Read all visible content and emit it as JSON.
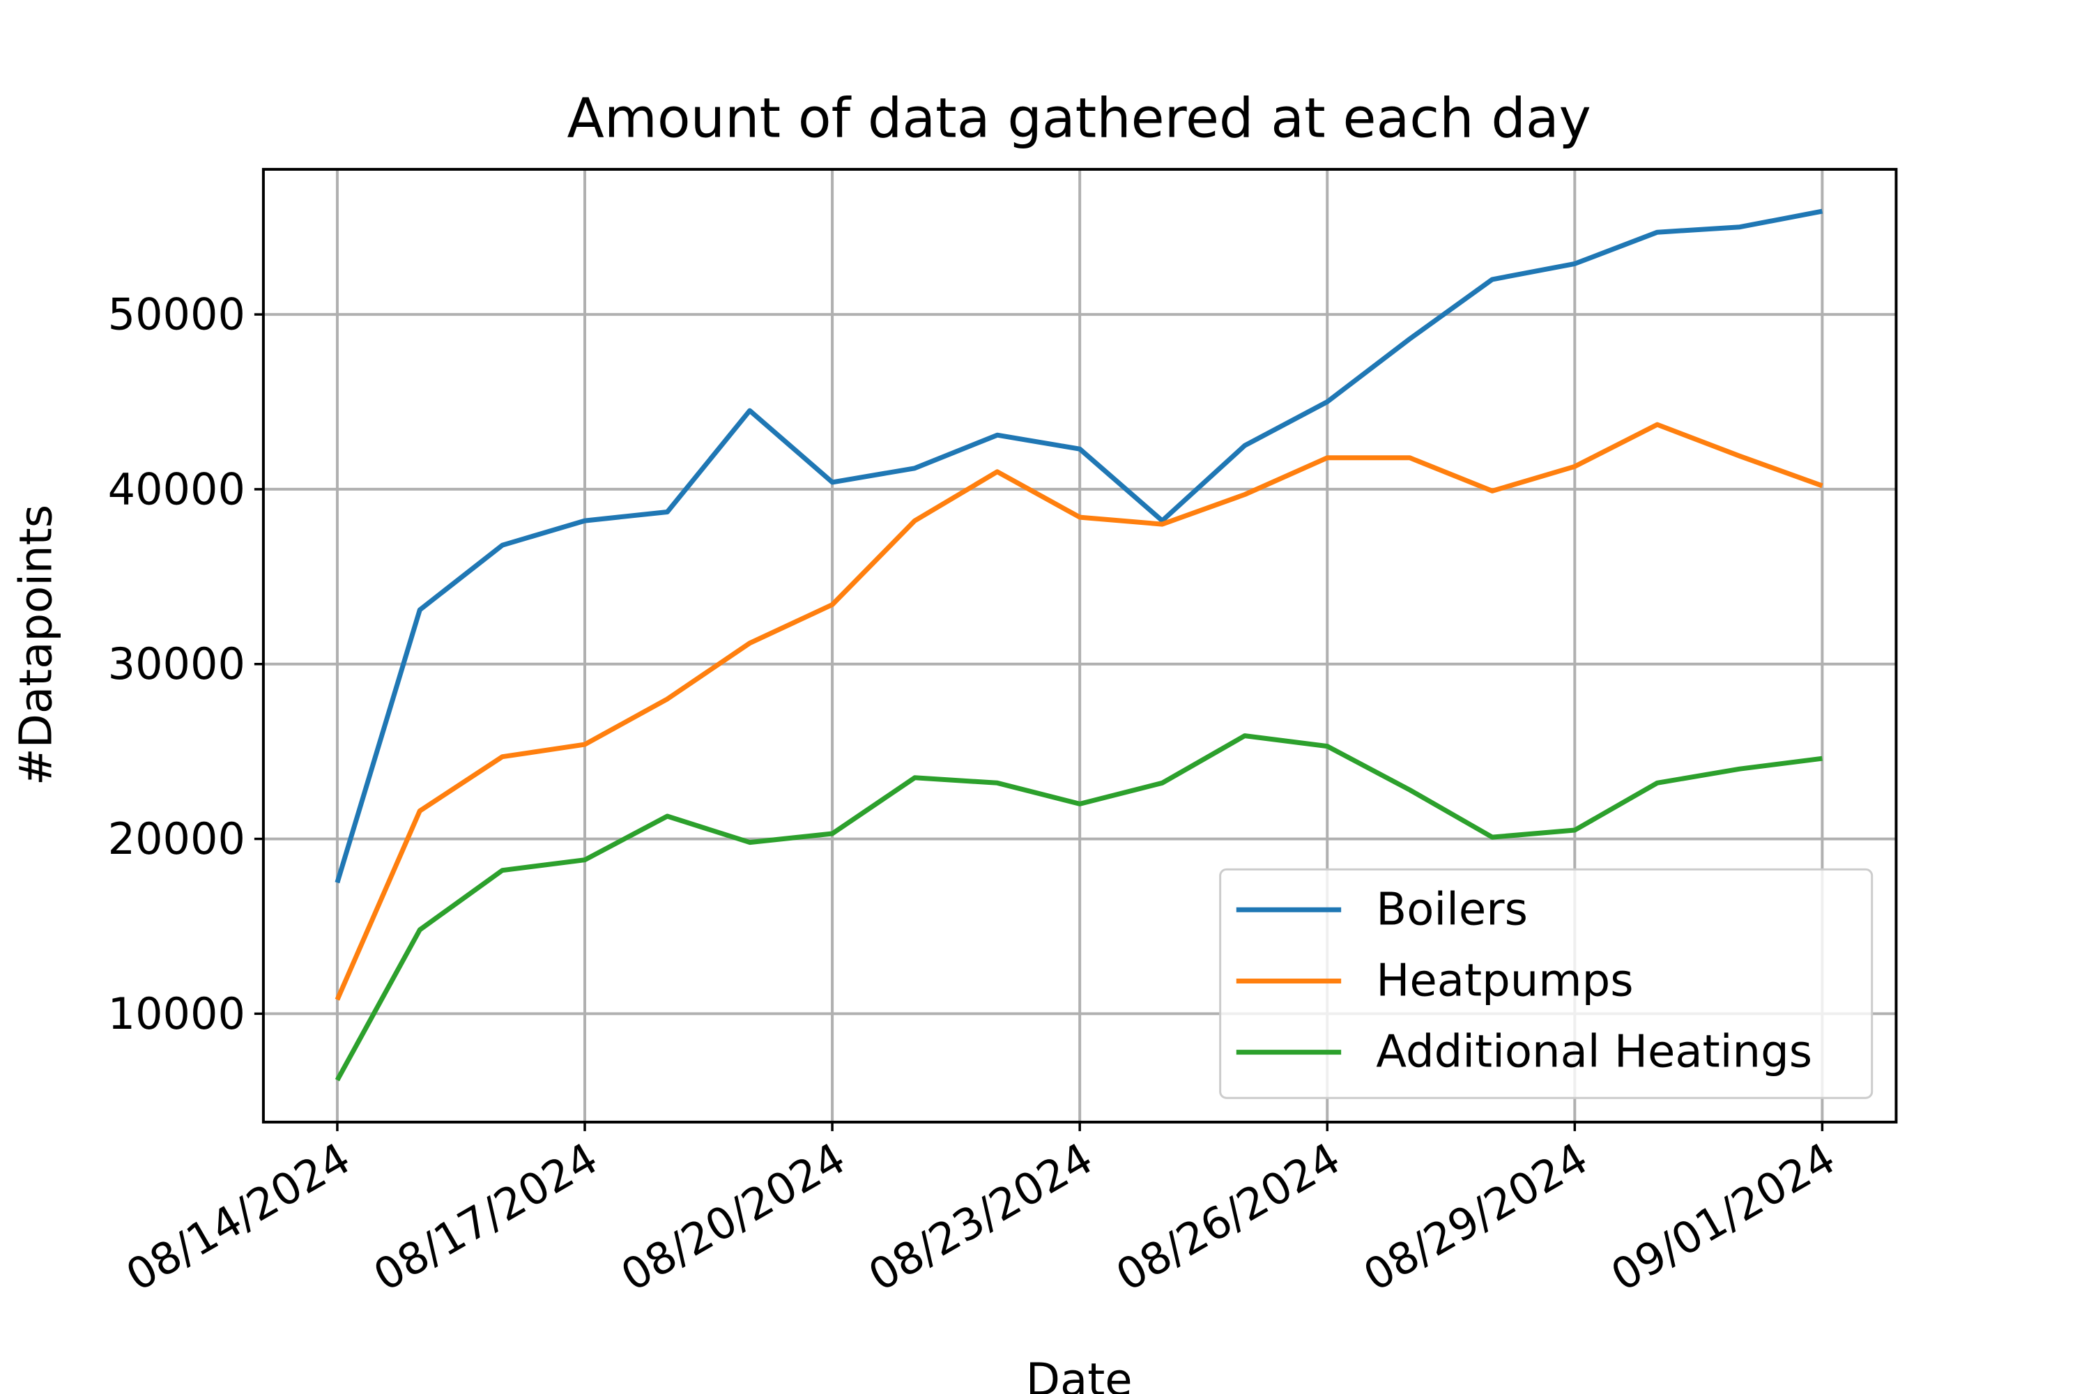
{
  "chart_data": {
    "type": "line",
    "title": "Amount of data gathered at each day",
    "xlabel": "Date",
    "ylabel": "#Datapoints",
    "x": [
      "08/14/2024",
      "08/15/2024",
      "08/16/2024",
      "08/17/2024",
      "08/18/2024",
      "08/19/2024",
      "08/20/2024",
      "08/21/2024",
      "08/22/2024",
      "08/23/2024",
      "08/24/2024",
      "08/25/2024",
      "08/26/2024",
      "08/27/2024",
      "08/28/2024",
      "08/29/2024",
      "08/30/2024",
      "08/31/2024",
      "09/01/2024"
    ],
    "xticks": [
      "08/14/2024",
      "08/17/2024",
      "08/20/2024",
      "08/23/2024",
      "08/26/2024",
      "08/29/2024",
      "09/01/2024"
    ],
    "yticks": [
      10000,
      20000,
      30000,
      40000,
      50000
    ],
    "ylim": [
      3800,
      58300
    ],
    "grid": true,
    "legend_position": "lower-right",
    "series": [
      {
        "name": "Boilers",
        "color": "#1f77b4",
        "values": [
          17500,
          33100,
          36800,
          38200,
          38700,
          44500,
          40400,
          41200,
          43100,
          42300,
          38200,
          42500,
          45000,
          48600,
          52000,
          52900,
          54700,
          55000,
          55900
        ]
      },
      {
        "name": "Heatpumps",
        "color": "#ff7f0e",
        "values": [
          10800,
          21600,
          24700,
          25400,
          28000,
          31200,
          33400,
          38200,
          41000,
          38400,
          38000,
          39700,
          41800,
          41800,
          39900,
          41300,
          43700,
          41900,
          40200
        ]
      },
      {
        "name": "Additional Heatings",
        "color": "#2ca02c",
        "values": [
          6200,
          14800,
          18200,
          18800,
          21300,
          19800,
          20300,
          23500,
          23200,
          22000,
          23200,
          25900,
          25300,
          22800,
          20100,
          20500,
          23200,
          24000,
          24600
        ]
      }
    ]
  }
}
